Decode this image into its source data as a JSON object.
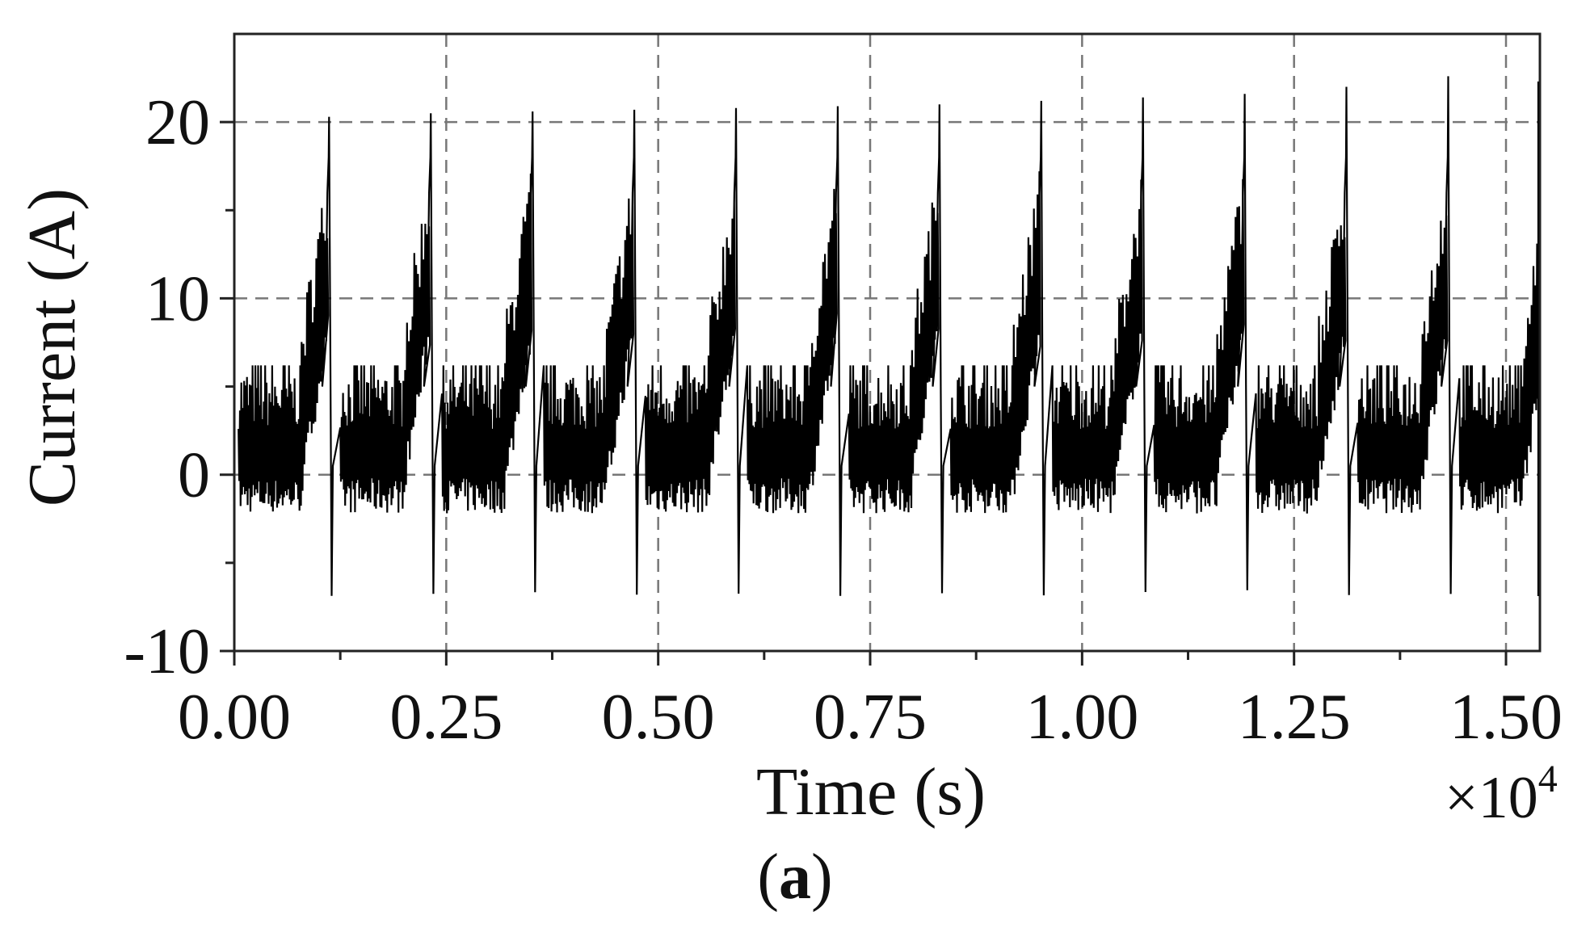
{
  "chart_data": {
    "type": "line",
    "title": "",
    "xlabel": "Time (s)",
    "ylabel": "Current (A)",
    "x_multiplier": {
      "base": "×10",
      "exponent": "4"
    },
    "xlim": [
      0,
      1.54
    ],
    "ylim": [
      -10,
      25
    ],
    "x_ticks": [
      "0.00",
      "0.25",
      "0.50",
      "0.75",
      "1.00",
      "1.25",
      "1.50"
    ],
    "x_tick_values": [
      0,
      0.25,
      0.5,
      0.75,
      1.0,
      1.25,
      1.5
    ],
    "y_ticks": [
      "-10",
      "0",
      "10",
      "20"
    ],
    "y_tick_values": [
      -10,
      0,
      10,
      20
    ],
    "grid": {
      "style": "dashed",
      "color": "#777777"
    },
    "series": [
      {
        "color": "#000000",
        "pattern": {
          "period": 0.12,
          "baseline_mean": 0.8,
          "baseline_low": -2.2,
          "baseline_high": 6.2,
          "ramp_values": [
            5,
            9,
            10,
            13,
            16,
            20
          ],
          "spike_peaks": [
            20.3,
            20.5,
            20.6,
            20.7,
            20.8,
            20.9,
            21.0,
            21.2,
            21.4,
            21.6,
            22.0,
            22.6,
            22.3
          ],
          "spike_min": -6.5
        }
      }
    ]
  },
  "caption": {
    "open": "(",
    "label": "a",
    "close": ")"
  }
}
